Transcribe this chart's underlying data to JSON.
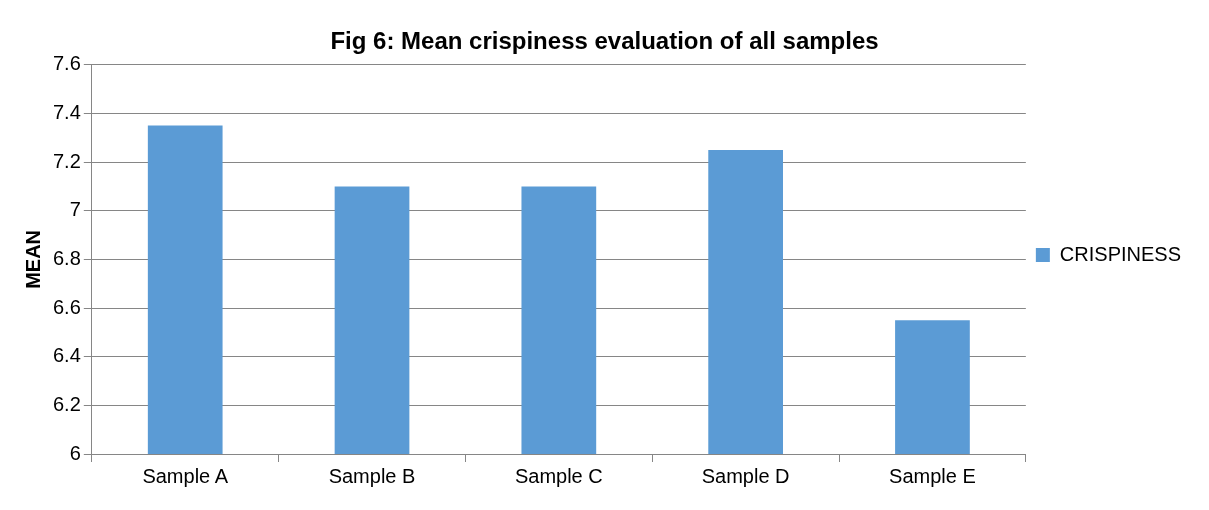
{
  "chart_data": {
    "type": "bar",
    "title": "Fig 6: Mean crispiness evaluation of all samples",
    "ylabel": "MEAN",
    "categories": [
      "Sample A",
      "Sample B",
      "Sample C",
      "Sample D",
      "Sample E"
    ],
    "series": [
      {
        "name": "CRISPINESS",
        "color": "#5b9bd5",
        "values": [
          7.35,
          7.1,
          7.1,
          7.25,
          6.55
        ]
      }
    ],
    "ylim": [
      6,
      7.6
    ],
    "yticks": [
      6,
      6.2,
      6.4,
      6.6,
      6.8,
      7,
      7.2,
      7.4,
      7.6
    ],
    "grid": "y",
    "legend": "right"
  }
}
